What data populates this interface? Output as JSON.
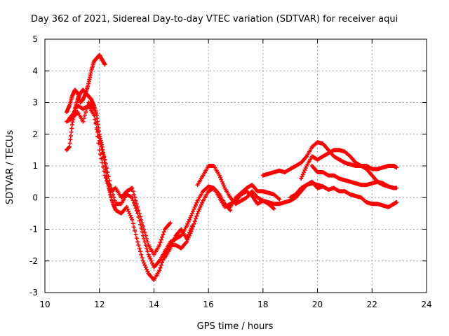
{
  "chart_data": {
    "type": "scatter",
    "title": "Day 362 of 2021, Sidereal Day-to-day VTEC variation (SDTVAR) for receiver aqui",
    "xlabel": "GPS time / hours",
    "ylabel": "SDTVAR / TECUs",
    "xlim": [
      10,
      24
    ],
    "ylim": [
      -3,
      5
    ],
    "x_ticks": [
      10,
      12,
      14,
      16,
      18,
      20,
      22,
      24
    ],
    "y_ticks": [
      -3,
      -2,
      -1,
      0,
      1,
      2,
      3,
      4,
      5
    ],
    "x_tick_labels": [
      "10",
      "12",
      "14",
      "16",
      "18",
      "20",
      "22",
      "24"
    ],
    "y_tick_labels": [
      "-3",
      "-2",
      "-1",
      "0",
      "1",
      "2",
      "3",
      "4",
      "5"
    ],
    "grid": true,
    "marker": "+",
    "series_color": "#ff0000",
    "series": [
      {
        "name": "track-1",
        "x": [
          10.8,
          10.9,
          11.0,
          11.1,
          11.2,
          11.3,
          11.4,
          11.5,
          11.6,
          11.7,
          11.8,
          11.9,
          12.0,
          12.1,
          12.2,
          12.3,
          12.4,
          12.5,
          12.6,
          12.8,
          13.0,
          13.2,
          13.4,
          13.6,
          13.8,
          14.0,
          14.2,
          14.4,
          14.6,
          14.8,
          15.0,
          15.2,
          15.4,
          15.6,
          15.8,
          16.0,
          16.2,
          16.4,
          16.6,
          16.8
        ],
        "y": [
          1.5,
          1.6,
          2.3,
          2.8,
          3.1,
          3.3,
          3.4,
          3.3,
          3.2,
          3.1,
          2.9,
          2.6,
          2.0,
          1.6,
          1.1,
          0.5,
          0.1,
          -0.2,
          -0.4,
          -0.5,
          -0.3,
          -0.7,
          -1.4,
          -2.0,
          -2.4,
          -2.6,
          -2.3,
          -1.8,
          -1.5,
          -1.5,
          -1.6,
          -1.4,
          -1.0,
          -0.5,
          -0.1,
          0.2,
          0.3,
          0.1,
          -0.2,
          -0.4
        ]
      },
      {
        "name": "track-2",
        "x": [
          10.8,
          10.9,
          11.0,
          11.1,
          11.2,
          11.3,
          11.4,
          11.5,
          11.6,
          11.7,
          11.8,
          11.9,
          12.0,
          12.1,
          12.2
        ],
        "y": [
          2.7,
          2.9,
          3.2,
          3.4,
          3.3,
          3.0,
          3.1,
          3.3,
          3.6,
          4.0,
          4.3,
          4.4,
          4.5,
          4.35,
          4.2
        ]
      },
      {
        "name": "track-3",
        "x": [
          10.9,
          11.0,
          11.2,
          11.4,
          11.6,
          11.8,
          12.0,
          12.2,
          12.4,
          12.6,
          12.8,
          13.0,
          13.2,
          13.4,
          13.6,
          13.8,
          14.0,
          14.2,
          14.4,
          14.6,
          14.8,
          15.0,
          15.2,
          15.4,
          15.6,
          15.8,
          16.0,
          16.2,
          16.4,
          16.6,
          16.8,
          17.0,
          17.2,
          17.4,
          17.6,
          17.8,
          18.0,
          18.2,
          18.4,
          18.6,
          18.8,
          19.0,
          19.2,
          19.4,
          19.6,
          19.8,
          20.0,
          20.2,
          20.4,
          20.6,
          20.8,
          21.0,
          21.2,
          21.4,
          21.6,
          21.8,
          22.0,
          22.2,
          22.4,
          22.6,
          22.8,
          22.9
        ],
        "y": [
          2.5,
          2.6,
          2.9,
          2.8,
          2.9,
          2.6,
          1.8,
          1.2,
          0.4,
          -0.2,
          -0.2,
          0.1,
          0.0,
          -0.5,
          -1.2,
          -1.8,
          -2.2,
          -2.0,
          -1.7,
          -1.4,
          -1.3,
          -1.2,
          -0.9,
          -0.5,
          -0.1,
          0.2,
          0.35,
          0.3,
          0.0,
          -0.3,
          -0.2,
          -0.1,
          0.1,
          0.2,
          0.05,
          -0.2,
          -0.1,
          -0.15,
          -0.2,
          -0.2,
          -0.15,
          -0.1,
          0.0,
          0.2,
          0.4,
          0.5,
          0.3,
          0.35,
          0.25,
          0.3,
          0.2,
          0.2,
          0.1,
          0.05,
          0.0,
          -0.15,
          -0.2,
          -0.2,
          -0.25,
          -0.3,
          -0.2,
          -0.15
        ]
      },
      {
        "name": "track-4",
        "x": [
          10.8,
          11.0,
          11.2,
          11.4,
          11.6,
          11.8,
          12.0,
          12.2,
          12.4,
          12.6,
          12.8,
          13.0,
          13.2,
          13.4,
          13.6,
          13.8,
          14.0,
          14.2,
          14.4,
          14.6
        ],
        "y": [
          2.4,
          2.5,
          2.7,
          2.4,
          3.0,
          2.8,
          1.5,
          0.7,
          0.2,
          0.3,
          0.0,
          0.2,
          0.3,
          -0.3,
          -0.9,
          -1.5,
          -1.8,
          -1.5,
          -1.0,
          -0.8
        ]
      },
      {
        "name": "track-5",
        "x": [
          14.4,
          14.6,
          14.8,
          15.0,
          15.2,
          15.4
        ],
        "y": [
          -1.9,
          -1.6,
          -1.2,
          -1.0,
          -1.3,
          -0.9
        ]
      },
      {
        "name": "track-6",
        "x": [
          15.6,
          15.8,
          16.0,
          16.2,
          16.4,
          16.6,
          16.8,
          17.0,
          17.2,
          17.4,
          17.6,
          17.8,
          18.0,
          18.2,
          18.4
        ],
        "y": [
          0.4,
          0.7,
          1.0,
          1.0,
          0.7,
          0.3,
          0.0,
          -0.2,
          -0.1,
          0.0,
          0.2,
          0.0,
          -0.1,
          -0.2,
          -0.35
        ]
      },
      {
        "name": "track-7",
        "x": [
          16.8,
          17.0,
          17.2,
          17.4,
          17.6,
          17.8,
          18.0,
          18.2,
          18.4,
          18.6
        ],
        "y": [
          -0.3,
          0.0,
          0.15,
          0.3,
          0.4,
          0.2,
          0.2,
          0.15,
          0.1,
          -0.05
        ]
      },
      {
        "name": "track-8",
        "x": [
          18.0,
          18.2,
          18.4,
          18.6,
          18.8,
          19.0,
          19.2,
          19.4,
          19.6,
          19.8,
          20.0,
          20.2,
          20.4,
          20.6,
          20.8,
          21.0,
          21.2,
          21.4,
          21.6,
          21.8,
          22.0,
          22.2,
          22.4,
          22.6,
          22.8,
          22.9
        ],
        "y": [
          0.7,
          0.75,
          0.8,
          0.85,
          0.8,
          0.9,
          1.0,
          1.1,
          1.3,
          1.6,
          1.75,
          1.7,
          1.5,
          1.3,
          1.2,
          1.1,
          1.05,
          1.0,
          1.0,
          1.0,
          0.9,
          0.9,
          0.95,
          1.0,
          1.0,
          0.95
        ]
      },
      {
        "name": "track-9",
        "x": [
          19.4,
          19.6,
          19.8,
          20.0,
          20.2,
          20.4,
          20.6,
          20.8,
          21.0,
          21.2,
          21.4,
          21.6,
          21.8,
          22.0,
          22.2,
          22.4,
          22.6,
          22.8,
          22.9
        ],
        "y": [
          0.6,
          1.0,
          1.3,
          1.2,
          1.3,
          1.4,
          1.5,
          1.5,
          1.45,
          1.3,
          1.1,
          1.0,
          0.9,
          0.7,
          0.5,
          0.4,
          0.35,
          0.3,
          0.3
        ]
      },
      {
        "name": "track-10",
        "x": [
          19.8,
          20.0,
          20.2,
          20.4,
          20.6,
          20.8,
          21.0,
          21.2,
          21.4,
          21.6,
          21.8,
          22.0,
          22.2,
          22.4,
          22.6,
          22.8
        ],
        "y": [
          1.0,
          0.8,
          0.8,
          0.7,
          0.7,
          0.6,
          0.55,
          0.5,
          0.45,
          0.4,
          0.4,
          0.45,
          0.5,
          0.45,
          0.35,
          0.3
        ]
      },
      {
        "name": "track-11",
        "x": [
          19.0,
          19.2,
          19.4,
          19.6,
          19.8,
          20.0,
          20.2
        ],
        "y": [
          0.0,
          0.1,
          0.3,
          0.4,
          0.45,
          0.4,
          0.35
        ]
      }
    ]
  }
}
